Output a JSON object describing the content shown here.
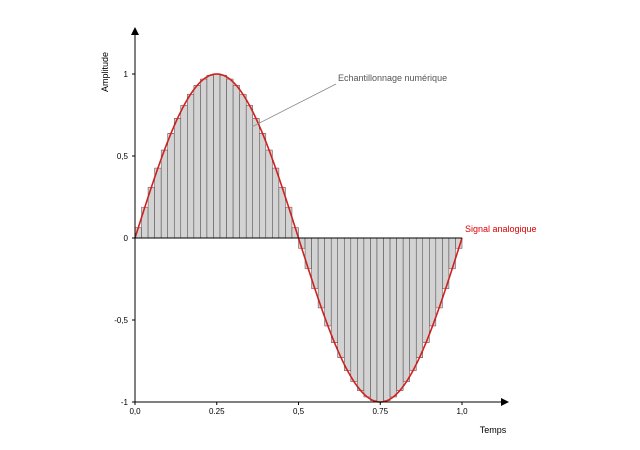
{
  "chart_data": {
    "type": "area",
    "xlabel": "Temps",
    "ylabel": "Amplitude",
    "xlim": [
      0,
      1.1
    ],
    "ylim": [
      -1,
      1.2
    ],
    "x_ticks": [
      {
        "value": 0.0,
        "label": "0,0"
      },
      {
        "value": 0.25,
        "label": "0.25"
      },
      {
        "value": 0.5,
        "label": "0,5"
      },
      {
        "value": 0.75,
        "label": "0.75"
      },
      {
        "value": 1.0,
        "label": "1,0"
      }
    ],
    "y_ticks": [
      {
        "value": 1,
        "label": "1"
      },
      {
        "value": 0.5,
        "label": "0,5"
      },
      {
        "value": 0,
        "label": "0"
      },
      {
        "value": -0.5,
        "label": "-0,5"
      },
      {
        "value": -1,
        "label": "-1"
      }
    ],
    "series": [
      {
        "name": "Signal analogique",
        "function": "sin(2*pi*t)",
        "t_range": [
          0,
          1
        ],
        "color": "#cc2222"
      },
      {
        "name": "Echantillonnage numérique",
        "sample_count": 50,
        "t_range": [
          0,
          1
        ],
        "fill": "#d3d3d3",
        "stroke": "#444444",
        "edge": "#d65050"
      }
    ],
    "annotations": [
      {
        "text": "Echantillonnage numérique",
        "color": "#555555",
        "points_to": [
          0.36,
          0.68
        ]
      },
      {
        "text": "Signal analogique",
        "color": "#dd0000",
        "points_to": [
          1.0,
          0.0
        ]
      }
    ],
    "grid": false,
    "legend": "none"
  }
}
